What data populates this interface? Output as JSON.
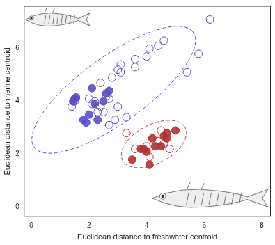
{
  "chart_data": {
    "type": "scatter",
    "x_label": "Euclidean distance to freshwater centroid",
    "y_label": "Euclidean distance to marine centroid",
    "xlim": [
      -0.25,
      8.3
    ],
    "ylim": [
      -0.35,
      7.6
    ],
    "xticks": [
      0,
      2,
      4,
      6,
      8
    ],
    "yticks": [
      0,
      2,
      4,
      6
    ],
    "grid": false,
    "series": [
      {
        "color": "#5b4fc7",
        "marker": "circle",
        "x": [
          1.5,
          1.55,
          1.45,
          1.8,
          1.9,
          2.0,
          2.1,
          2.3,
          2.6,
          2.7,
          2.5,
          2.2
        ],
        "values": [
          4.1,
          4.15,
          4.0,
          3.3,
          3.2,
          3.5,
          4.5,
          3.3,
          4.3,
          4.4,
          4.0,
          3.9
        ]
      },
      {
        "color": "#5b4fc7",
        "marker": "open_circle",
        "x": [
          1.4,
          1.5,
          2.0,
          2.1,
          2.2,
          2.3,
          2.4,
          2.5,
          2.6,
          2.7,
          2.4,
          2.8,
          2.7,
          2.9,
          3.0,
          3.0,
          3.1,
          3.1,
          3.3,
          3.6,
          3.6,
          4.0,
          4.1,
          4.4,
          4.6,
          5.4,
          5.8,
          6.2
        ],
        "values": [
          3.8,
          4.0,
          4.1,
          3.9,
          4.0,
          3.6,
          3.8,
          3.6,
          4.2,
          4.1,
          4.7,
          4.9,
          3.1,
          3.3,
          3.8,
          5.2,
          5.4,
          5.1,
          3.4,
          5.3,
          5.6,
          5.7,
          6.0,
          6.1,
          6.3,
          5.1,
          5.8,
          7.1
        ]
      },
      {
        "color": "#b5302f",
        "marker": "circle",
        "x": [
          3.5,
          3.8,
          3.9,
          4.0,
          4.1,
          4.2,
          4.3,
          4.5,
          4.6,
          4.7,
          4.7,
          5.0
        ],
        "values": [
          1.8,
          2.2,
          2.2,
          2.1,
          1.6,
          2.6,
          2.3,
          2.3,
          2.7,
          2.8,
          2.6,
          2.9
        ]
      },
      {
        "color": "#b5302f",
        "marker": "open_circle",
        "x": [
          3.3,
          3.6,
          4.1,
          4.4,
          4.5,
          4.6,
          4.7,
          4.8,
          4.0
        ],
        "values": [
          2.8,
          2.2,
          1.9,
          2.5,
          2.9,
          2.4,
          2.8,
          2.2,
          2.3
        ]
      }
    ]
  }
}
